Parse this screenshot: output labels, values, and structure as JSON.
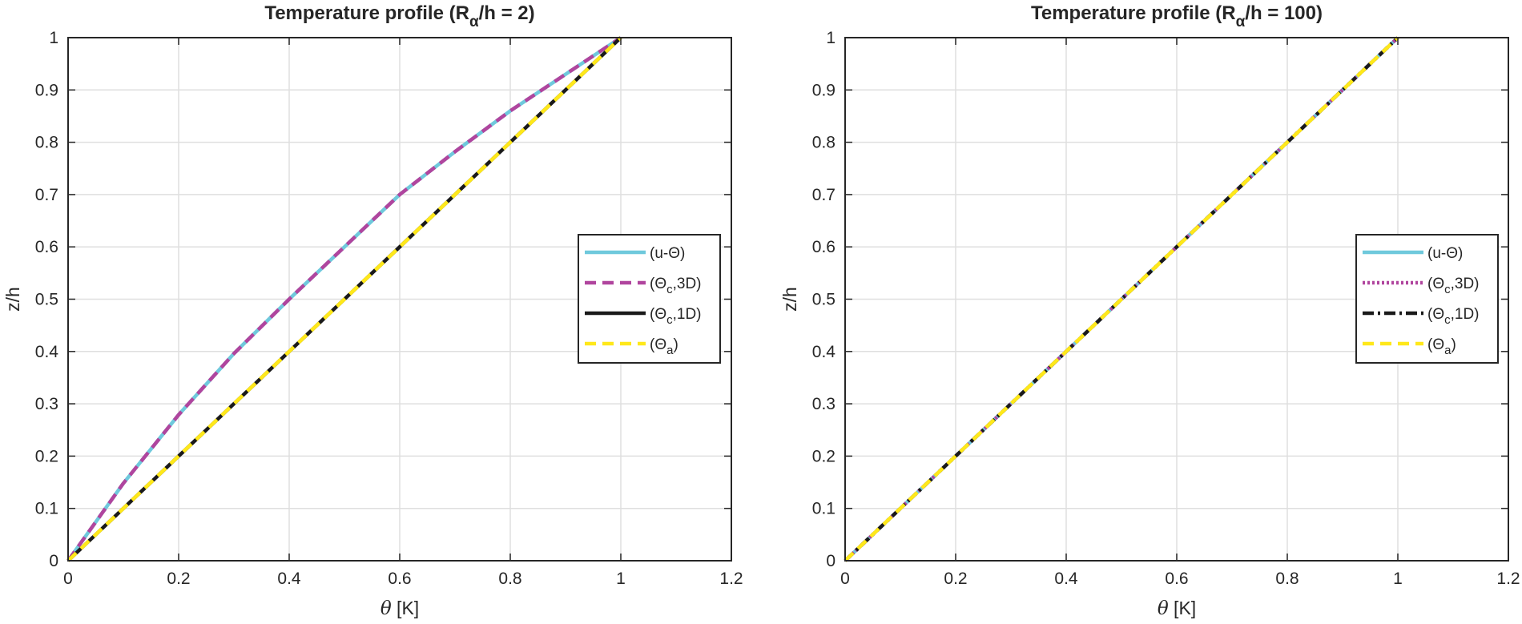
{
  "chart_data": [
    {
      "type": "line",
      "title": {
        "pre": "Temperature profile (R",
        "sub": "α",
        "post": "/h = 2)"
      },
      "xlabel": {
        "sym": "θ",
        "rest": " [K]"
      },
      "ylabel": "z/h",
      "xlim": [
        0,
        1.2
      ],
      "ylim": [
        0,
        1
      ],
      "xticks": [
        0,
        0.2,
        0.4,
        0.6,
        0.8,
        1,
        1.2
      ],
      "yticks": [
        0,
        0.1,
        0.2,
        0.3,
        0.4,
        0.5,
        0.6,
        0.7,
        0.8,
        0.9,
        1
      ],
      "xtick_labels": [
        "0",
        "0.2",
        "0.4",
        "0.6",
        "0.8",
        "1",
        "1.2"
      ],
      "ytick_labels": [
        "0",
        "0.1",
        "0.2",
        "0.3",
        "0.4",
        "0.5",
        "0.6",
        "0.7",
        "0.8",
        "0.9",
        "1"
      ],
      "grid": true,
      "legend_position": "right",
      "series": [
        {
          "name": "(u-Θ)",
          "label": {
            "pre": "(u-Θ)",
            "sub": "",
            "post": ""
          },
          "color": "#6fc9dc",
          "style": "solid",
          "x": [
            0,
            0.1,
            0.2,
            0.3,
            0.4,
            0.5,
            0.6,
            0.7,
            0.8,
            0.9,
            1
          ],
          "y": [
            0,
            0.148,
            0.279,
            0.396,
            0.5,
            0.6,
            0.7,
            0.782,
            0.86,
            0.93,
            1
          ]
        },
        {
          "name": "(Θc,3D)",
          "label": {
            "pre": "(Θ",
            "sub": "c",
            "post": ",3D)"
          },
          "color": "#b0459e",
          "style": "dashed",
          "x": [
            0,
            0.1,
            0.2,
            0.3,
            0.4,
            0.5,
            0.6,
            0.7,
            0.8,
            0.9,
            1
          ],
          "y": [
            0,
            0.148,
            0.279,
            0.396,
            0.5,
            0.6,
            0.7,
            0.782,
            0.86,
            0.93,
            1
          ]
        },
        {
          "name": "(Θc,1D)",
          "label": {
            "pre": "(Θ",
            "sub": "c",
            "post": ",1D)"
          },
          "color": "#1a1a1a",
          "style": "solid",
          "x": [
            0,
            1
          ],
          "y": [
            0,
            1
          ]
        },
        {
          "name": "(Θa)",
          "label": {
            "pre": "(Θ",
            "sub": "a",
            "post": ")"
          },
          "color": "#ffe81a",
          "style": "dashed",
          "x": [
            0,
            1
          ],
          "y": [
            0,
            1
          ]
        }
      ]
    },
    {
      "type": "line",
      "title": {
        "pre": "Temperature profile (R",
        "sub": "α",
        "post": "/h = 100)"
      },
      "xlabel": {
        "sym": "θ",
        "rest": " [K]"
      },
      "ylabel": "z/h",
      "xlim": [
        0,
        1.2
      ],
      "ylim": [
        0,
        1
      ],
      "xticks": [
        0,
        0.2,
        0.4,
        0.6,
        0.8,
        1,
        1.2
      ],
      "yticks": [
        0,
        0.1,
        0.2,
        0.3,
        0.4,
        0.5,
        0.6,
        0.7,
        0.8,
        0.9,
        1
      ],
      "xtick_labels": [
        "0",
        "0.2",
        "0.4",
        "0.6",
        "0.8",
        "1",
        "1.2"
      ],
      "ytick_labels": [
        "0",
        "0.1",
        "0.2",
        "0.3",
        "0.4",
        "0.5",
        "0.6",
        "0.7",
        "0.8",
        "0.9",
        "1"
      ],
      "grid": true,
      "legend_position": "right",
      "series": [
        {
          "name": "(u-Θ)",
          "label": {
            "pre": "(u-Θ)",
            "sub": "",
            "post": ""
          },
          "color": "#6fc9dc",
          "style": "solid",
          "x": [
            0,
            1
          ],
          "y": [
            0,
            1
          ]
        },
        {
          "name": "(Θc,3D)",
          "label": {
            "pre": "(Θ",
            "sub": "c",
            "post": ",3D)"
          },
          "color": "#b0459e",
          "style": "dotted",
          "x": [
            0,
            1
          ],
          "y": [
            0,
            1
          ]
        },
        {
          "name": "(Θc,1D)",
          "label": {
            "pre": "(Θ",
            "sub": "c",
            "post": ",1D)"
          },
          "color": "#1a1a1a",
          "style": "dashdot",
          "x": [
            0,
            1
          ],
          "y": [
            0,
            1
          ]
        },
        {
          "name": "(Θa)",
          "label": {
            "pre": "(Θ",
            "sub": "a",
            "post": ")"
          },
          "color": "#ffe81a",
          "style": "dashed",
          "x": [
            0,
            1
          ],
          "y": [
            0,
            1
          ]
        }
      ]
    }
  ]
}
